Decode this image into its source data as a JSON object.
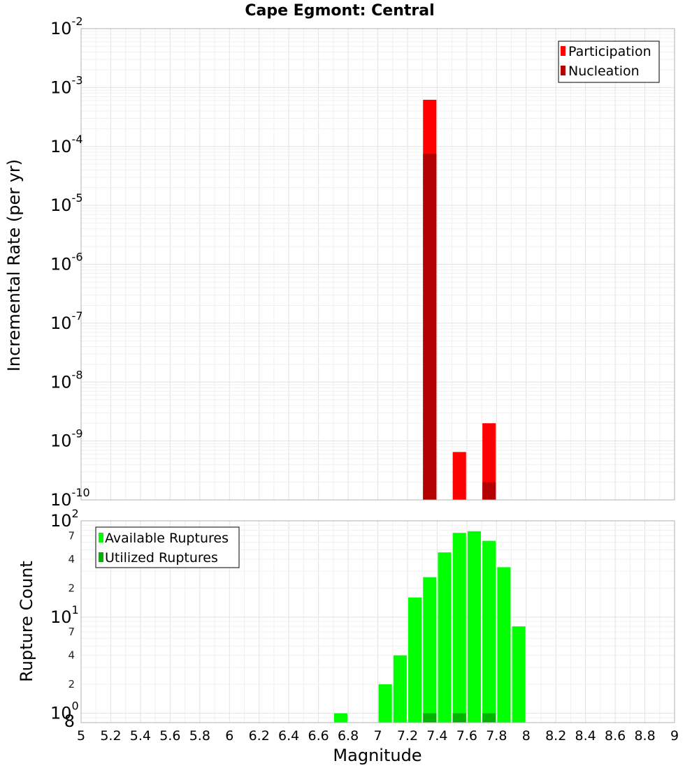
{
  "chart_data": [
    {
      "type": "bar",
      "title": "Cape Egmont: Central",
      "xlabel": "Magnitude",
      "ylabel": "Incremental Rate (per yr)",
      "yscale": "log",
      "xlim": [
        5,
        9
      ],
      "ylim": [
        1e-10,
        0.01
      ],
      "bin_width": 0.1,
      "y_ticks": [
        {
          "base": "10",
          "exp": "-10"
        },
        {
          "base": "10",
          "exp": "-9"
        },
        {
          "base": "10",
          "exp": "-8"
        },
        {
          "base": "10",
          "exp": "-7"
        },
        {
          "base": "10",
          "exp": "-6"
        },
        {
          "base": "10",
          "exp": "-5"
        },
        {
          "base": "10",
          "exp": "-4"
        },
        {
          "base": "10",
          "exp": "-3"
        },
        {
          "base": "10",
          "exp": "-2"
        }
      ],
      "legend_position": "top-right",
      "series": [
        {
          "name": "Participation",
          "color": "#ff0000",
          "x": [
            7.35,
            7.55,
            7.75
          ],
          "values": [
            0.00062,
            6.5e-10,
            2e-09
          ]
        },
        {
          "name": "Nucleation",
          "color": "#b30000",
          "x": [
            7.35,
            7.75
          ],
          "values": [
            7.5e-05,
            2e-10
          ]
        }
      ]
    },
    {
      "type": "bar",
      "xlabel": "Magnitude",
      "ylabel": "Rupture Count",
      "yscale": "log",
      "xlim": [
        5,
        9
      ],
      "ylim": [
        0.8,
        100
      ],
      "bin_width": 0.1,
      "x_tick_labels": [
        "5",
        "5.2",
        "5.4",
        "5.6",
        "5.8",
        "6",
        "6.2",
        "6.4",
        "6.6",
        "6.8",
        "7",
        "7.2",
        "7.4",
        "7.6",
        "7.8",
        "8",
        "8.2",
        "8.4",
        "8.6",
        "8.8",
        "9"
      ],
      "y_ticks": [
        {
          "base": "10",
          "exp": "0"
        },
        {
          "base": "10",
          "exp": "1"
        },
        {
          "base": "10",
          "exp": "2"
        }
      ],
      "y_minor_labels": [
        "8",
        "2",
        "4",
        "7",
        "2",
        "4",
        "7"
      ],
      "y_minor_values": [
        0.8,
        2,
        4,
        7,
        20,
        40,
        70
      ],
      "legend_position": "top-left",
      "series": [
        {
          "name": "Available Ruptures",
          "color": "#00ff00",
          "x": [
            6.75,
            7.05,
            7.15,
            7.25,
            7.35,
            7.45,
            7.55,
            7.65,
            7.75,
            7.85,
            7.95
          ],
          "values": [
            1,
            2,
            4,
            16,
            26,
            47,
            75,
            78,
            62,
            33,
            8
          ]
        },
        {
          "name": "Utilized Ruptures",
          "color": "#00b300",
          "x": [
            7.35,
            7.55,
            7.75
          ],
          "values": [
            1,
            1,
            1
          ]
        }
      ]
    }
  ]
}
